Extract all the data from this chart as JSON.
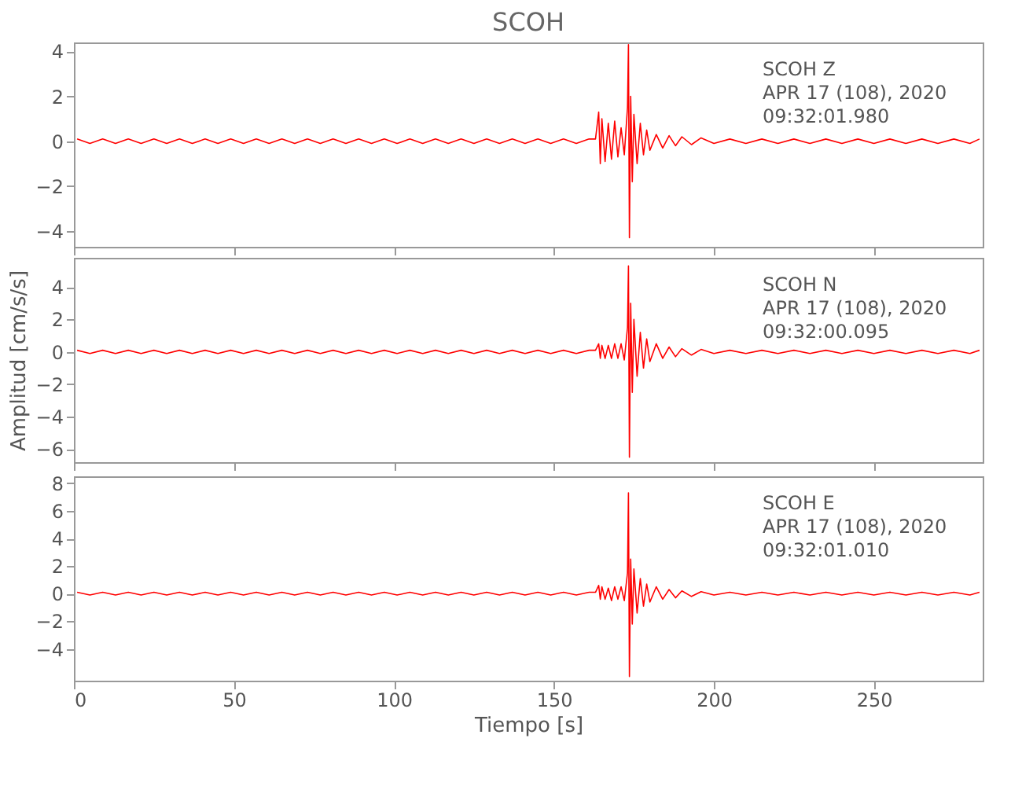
{
  "chart_data": [
    {
      "type": "line",
      "title": "SCOH",
      "annotations": [
        "SCOH   Z",
        "APR 17 (108), 2020",
        "09:32:01.980"
      ],
      "xlim": [
        0,
        284
      ],
      "xticks": [
        0,
        50,
        100,
        150,
        200,
        250
      ],
      "ylim": [
        -4.7,
        4.4
      ],
      "yticks": [
        -4,
        -2,
        0,
        2,
        4
      ],
      "grid": false,
      "tick_labels": "y",
      "x": [
        1,
        5,
        9,
        13,
        17,
        21,
        25,
        29,
        33,
        37,
        41,
        45,
        49,
        53,
        57,
        61,
        65,
        69,
        73,
        77,
        81,
        85,
        89,
        93,
        97,
        101,
        105,
        109,
        113,
        117,
        121,
        125,
        129,
        133,
        137,
        141,
        145,
        149,
        153,
        157,
        161,
        163,
        164,
        164.5,
        165,
        166,
        167,
        168,
        169,
        170,
        171,
        172,
        173,
        173.3,
        173.6,
        174,
        174.5,
        175,
        176,
        177,
        178,
        179,
        180,
        182,
        184,
        186,
        188,
        190,
        193,
        196,
        200,
        205,
        210,
        215,
        220,
        225,
        230,
        235,
        240,
        245,
        250,
        255,
        260,
        265,
        270,
        275,
        280,
        283
      ],
      "series": [
        {
          "color": "#ff0000",
          "values": [
            0.1,
            -0.1,
            0.1,
            -0.1,
            0.1,
            -0.1,
            0.1,
            -0.1,
            0.1,
            -0.1,
            0.1,
            -0.1,
            0.1,
            -0.1,
            0.1,
            -0.1,
            0.1,
            -0.1,
            0.1,
            -0.1,
            0.1,
            -0.1,
            0.1,
            -0.1,
            0.1,
            -0.1,
            0.1,
            -0.1,
            0.1,
            -0.1,
            0.1,
            -0.1,
            0.1,
            -0.1,
            0.1,
            -0.1,
            0.1,
            -0.1,
            0.1,
            -0.1,
            0.1,
            0.1,
            1.3,
            -1.0,
            1.0,
            -0.9,
            0.8,
            -0.8,
            0.9,
            -0.7,
            0.6,
            -0.6,
            1.5,
            4.3,
            -4.3,
            2.0,
            -1.8,
            1.2,
            -1.0,
            0.8,
            -0.6,
            0.5,
            -0.4,
            0.3,
            -0.3,
            0.25,
            -0.2,
            0.2,
            -0.15,
            0.15,
            -0.1,
            0.1,
            -0.1,
            0.1,
            -0.1,
            0.1,
            -0.1,
            0.1,
            -0.1,
            0.1,
            -0.1,
            0.1,
            -0.1,
            0.1,
            -0.1,
            0.1,
            -0.1,
            0.1
          ]
        }
      ]
    },
    {
      "type": "line",
      "annotations": [
        "SCOH   N",
        "APR 17 (108), 2020",
        "09:32:00.095"
      ],
      "ylabel": "Amplitud [cm/s/s]",
      "xlim": [
        0,
        284
      ],
      "xticks": [
        0,
        50,
        100,
        150,
        200,
        250
      ],
      "ylim": [
        -6.8,
        5.8
      ],
      "yticks": [
        -6,
        -4,
        -2,
        0,
        2,
        4
      ],
      "grid": false,
      "tick_labels": "y",
      "x": [
        1,
        5,
        9,
        13,
        17,
        21,
        25,
        29,
        33,
        37,
        41,
        45,
        49,
        53,
        57,
        61,
        65,
        69,
        73,
        77,
        81,
        85,
        89,
        93,
        97,
        101,
        105,
        109,
        113,
        117,
        121,
        125,
        129,
        133,
        137,
        141,
        145,
        149,
        153,
        157,
        161,
        163,
        164,
        164.5,
        165,
        166,
        167,
        168,
        169,
        170,
        171,
        172,
        173,
        173.3,
        173.6,
        174,
        174.5,
        175,
        176,
        177,
        178,
        179,
        180,
        182,
        184,
        186,
        188,
        190,
        193,
        196,
        200,
        205,
        210,
        215,
        220,
        225,
        230,
        235,
        240,
        245,
        250,
        255,
        260,
        265,
        270,
        275,
        280,
        283
      ],
      "series": [
        {
          "color": "#ff0000",
          "values": [
            0.1,
            -0.1,
            0.1,
            -0.1,
            0.1,
            -0.1,
            0.1,
            -0.1,
            0.1,
            -0.1,
            0.1,
            -0.1,
            0.1,
            -0.1,
            0.1,
            -0.1,
            0.1,
            -0.1,
            0.1,
            -0.1,
            0.1,
            -0.1,
            0.1,
            -0.1,
            0.1,
            -0.1,
            0.1,
            -0.1,
            0.1,
            -0.1,
            0.1,
            -0.1,
            0.1,
            -0.1,
            0.1,
            -0.1,
            0.1,
            -0.1,
            0.1,
            -0.1,
            0.1,
            0.1,
            0.5,
            -0.4,
            0.4,
            -0.4,
            0.4,
            -0.4,
            0.5,
            -0.4,
            0.5,
            -0.5,
            1.5,
            5.3,
            -6.5,
            3.0,
            -2.5,
            2.0,
            -1.5,
            1.2,
            -1.0,
            0.8,
            -0.6,
            0.5,
            -0.4,
            0.3,
            -0.3,
            0.2,
            -0.2,
            0.15,
            -0.1,
            0.1,
            -0.1,
            0.1,
            -0.1,
            0.1,
            -0.1,
            0.1,
            -0.1,
            0.1,
            -0.1,
            0.1,
            -0.1,
            0.1,
            -0.1,
            0.1,
            -0.1,
            0.1
          ]
        }
      ]
    },
    {
      "type": "line",
      "annotations": [
        "SCOH   E",
        "APR 17 (108), 2020",
        "09:32:01.010"
      ],
      "xlabel": "Tiempo [s]",
      "xlim": [
        0,
        284
      ],
      "xticks": [
        0,
        50,
        100,
        150,
        200,
        250
      ],
      "ylim": [
        -6.3,
        8.5
      ],
      "yticks": [
        -4,
        -2,
        0,
        2,
        4,
        6,
        8
      ],
      "grid": false,
      "x": [
        1,
        5,
        9,
        13,
        17,
        21,
        25,
        29,
        33,
        37,
        41,
        45,
        49,
        53,
        57,
        61,
        65,
        69,
        73,
        77,
        81,
        85,
        89,
        93,
        97,
        101,
        105,
        109,
        113,
        117,
        121,
        125,
        129,
        133,
        137,
        141,
        145,
        149,
        153,
        157,
        161,
        163,
        164,
        164.5,
        165,
        166,
        167,
        168,
        169,
        170,
        171,
        172,
        173,
        173.3,
        173.6,
        174,
        174.5,
        175,
        176,
        177,
        178,
        179,
        180,
        182,
        184,
        186,
        188,
        190,
        193,
        196,
        200,
        205,
        210,
        215,
        220,
        225,
        230,
        235,
        240,
        245,
        250,
        255,
        260,
        265,
        270,
        275,
        280,
        283
      ],
      "series": [
        {
          "color": "#ff0000",
          "values": [
            0.1,
            -0.1,
            0.1,
            -0.1,
            0.1,
            -0.1,
            0.1,
            -0.1,
            0.1,
            -0.1,
            0.1,
            -0.1,
            0.1,
            -0.1,
            0.1,
            -0.1,
            0.1,
            -0.1,
            0.1,
            -0.1,
            0.1,
            -0.1,
            0.1,
            -0.1,
            0.1,
            -0.1,
            0.1,
            -0.1,
            0.1,
            -0.1,
            0.1,
            -0.1,
            0.1,
            -0.1,
            0.1,
            -0.1,
            0.1,
            -0.1,
            0.1,
            -0.1,
            0.1,
            0.1,
            0.6,
            -0.4,
            0.5,
            -0.4,
            0.4,
            -0.5,
            0.5,
            -0.4,
            0.5,
            -0.5,
            1.5,
            7.3,
            -6.0,
            2.5,
            -2.2,
            1.8,
            -1.4,
            1.1,
            -0.9,
            0.7,
            -0.6,
            0.5,
            -0.4,
            0.3,
            -0.3,
            0.2,
            -0.2,
            0.15,
            -0.1,
            0.1,
            -0.1,
            0.1,
            -0.1,
            0.1,
            -0.1,
            0.1,
            -0.1,
            0.1,
            -0.1,
            0.1,
            -0.1,
            0.1,
            -0.1,
            0.1,
            -0.1,
            0.1
          ]
        }
      ]
    }
  ]
}
